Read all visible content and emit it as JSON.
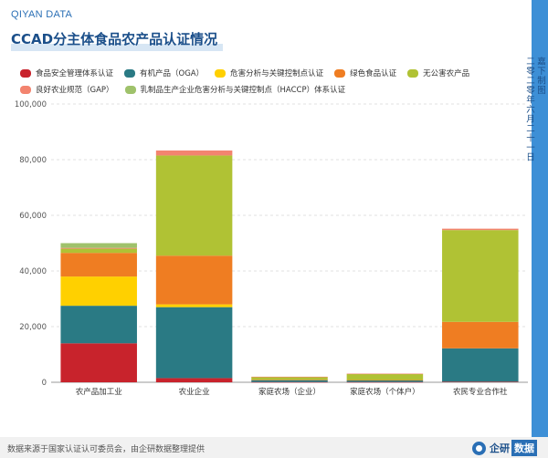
{
  "header": {
    "brand": "QIYAN DATA",
    "title": "CCAD分主体食品农产品认证情况"
  },
  "sidebar": {
    "line1": "嘉下制图",
    "line2": "二零二零年六月二十一日"
  },
  "footer": {
    "source": "数据来源于国家认证认可委员会，由企研数据整理提供",
    "logo_text": "企研",
    "logo_badge": "数据"
  },
  "colors": {
    "accent": "#3d8fd6",
    "title": "#1b4f8a"
  },
  "chart_data": {
    "type": "bar",
    "stacked": true,
    "categories": [
      "农产品加工业",
      "农业企业",
      "家庭农场（企业）",
      "家庭农场（个体户）",
      "农民专业合作社"
    ],
    "ylim": [
      0,
      100000
    ],
    "yticks": [
      0,
      20000,
      40000,
      60000,
      80000,
      100000
    ],
    "ytick_labels": [
      "0",
      "20,000",
      "40,000",
      "60,000",
      "80,000",
      "100,000"
    ],
    "grid": true,
    "legend_position": "top",
    "series": [
      {
        "name": "食品安全管理体系认证",
        "color": "#c8232c",
        "values": [
          14000,
          1500,
          100,
          100,
          200
        ]
      },
      {
        "name": "有机产品（OGA）",
        "color": "#2a7a84",
        "values": [
          13500,
          25500,
          700,
          600,
          12000
        ]
      },
      {
        "name": "危害分析与关键控制点认证",
        "color": "#ffd000",
        "values": [
          10500,
          1000,
          0,
          0,
          0
        ]
      },
      {
        "name": "绿色食品认证",
        "color": "#ef7d22",
        "values": [
          8500,
          17500,
          100,
          100,
          9500
        ]
      },
      {
        "name": "无公害农产品",
        "color": "#b0c234",
        "values": [
          1500,
          36000,
          1000,
          2200,
          33000
        ]
      },
      {
        "name": "良好农业规范（GAP）",
        "color": "#f3846f",
        "values": [
          300,
          1800,
          100,
          100,
          500
        ]
      },
      {
        "name": "乳制品生产企业危害分析与关键控制点（HACCP）体系认证",
        "color": "#9fc26b",
        "values": [
          1700,
          0,
          0,
          0,
          0
        ]
      }
    ]
  }
}
